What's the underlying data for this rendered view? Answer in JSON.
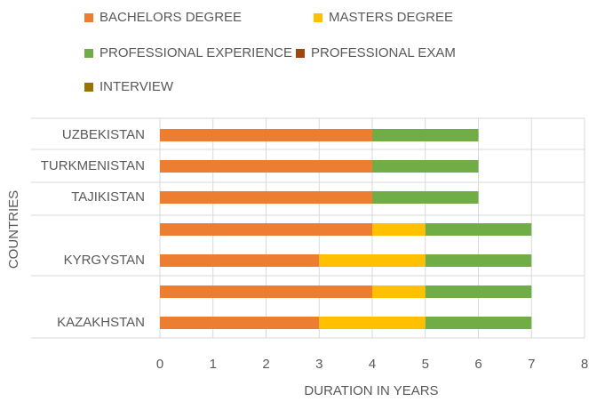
{
  "chart_data": {
    "type": "bar",
    "orientation": "horizontal",
    "stacked": true,
    "categories": [
      "UZBEKISTAN",
      "TURKMENISTAN",
      "TAJIKISTAN",
      null,
      "KYRGYSTAN",
      null,
      "KAZAKHSTAN"
    ],
    "series": [
      {
        "name": "BACHELORS DEGREE",
        "color": "#ed7d31",
        "values": [
          4,
          4,
          4,
          4,
          3,
          4,
          3
        ]
      },
      {
        "name": "MASTERS DEGREE",
        "color": "#ffc000",
        "values": [
          0,
          0,
          0,
          1,
          2,
          1,
          2
        ]
      },
      {
        "name": "PROFESSIONAL EXPERIENCE",
        "color": "#70ad47",
        "values": [
          2,
          2,
          2,
          2,
          2,
          2,
          2
        ]
      },
      {
        "name": "PROFESSIONAL EXAM",
        "color": "#9e480e",
        "values": [
          0,
          0,
          0,
          0,
          0,
          0,
          0
        ]
      },
      {
        "name": "INTERVIEW",
        "color": "#997300",
        "values": [
          0,
          0,
          0,
          0,
          0,
          0,
          0
        ]
      }
    ],
    "xlabel": "DURATION IN YEARS",
    "ylabel": "COUNTRIES",
    "xlim": [
      0,
      8
    ],
    "xticks": [
      0,
      1,
      2,
      3,
      4,
      5,
      6,
      7,
      8
    ],
    "grid": true,
    "legend": "top"
  }
}
